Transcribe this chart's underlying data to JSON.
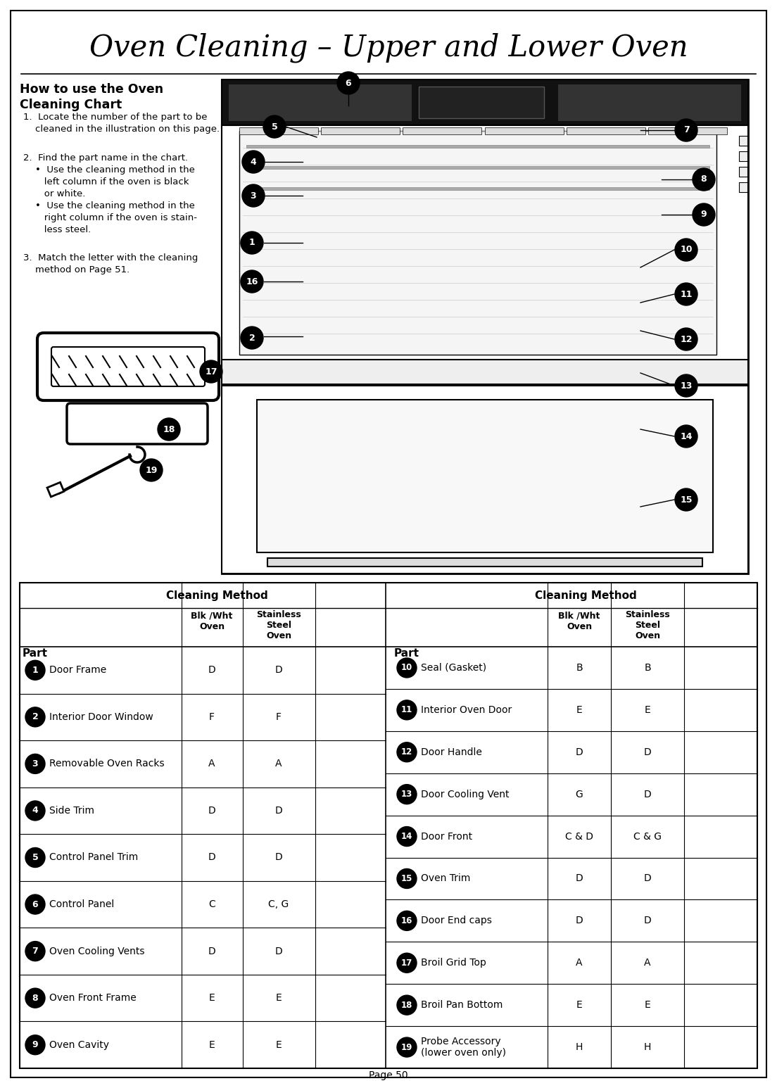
{
  "title": "Oven Cleaning – Upper and Lower Oven",
  "page_num": "Page 50",
  "bg_color": "#ffffff",
  "cleaning_method_label": "Cleaning Method",
  "left_parts": [
    {
      "num": "1",
      "name": "Door Frame",
      "blk": "D",
      "ss": "D"
    },
    {
      "num": "2",
      "name": "Interior Door Window",
      "blk": "F",
      "ss": "F"
    },
    {
      "num": "3",
      "name": "Removable Oven Racks",
      "blk": "A",
      "ss": "A"
    },
    {
      "num": "4",
      "name": "Side Trim",
      "blk": "D",
      "ss": "D"
    },
    {
      "num": "5",
      "name": "Control Panel Trim",
      "blk": "D",
      "ss": "D"
    },
    {
      "num": "6",
      "name": "Control Panel",
      "blk": "C",
      "ss": "C, G"
    },
    {
      "num": "7",
      "name": "Oven Cooling Vents",
      "blk": "D",
      "ss": "D"
    },
    {
      "num": "8",
      "name": "Oven Front Frame",
      "blk": "E",
      "ss": "E"
    },
    {
      "num": "9",
      "name": "Oven Cavity",
      "blk": "E",
      "ss": "E"
    }
  ],
  "right_parts": [
    {
      "num": "10",
      "name": "Seal (Gasket)",
      "blk": "B",
      "ss": "B"
    },
    {
      "num": "11",
      "name": "Interior Oven Door",
      "blk": "E",
      "ss": "E"
    },
    {
      "num": "12",
      "name": "Door Handle",
      "blk": "D",
      "ss": "D"
    },
    {
      "num": "13",
      "name": "Door Cooling Vent",
      "blk": "G",
      "ss": "D"
    },
    {
      "num": "14",
      "name": "Door Front",
      "blk": "C & D",
      "ss": "C & G"
    },
    {
      "num": "15",
      "name": "Oven Trim",
      "blk": "D",
      "ss": "D"
    },
    {
      "num": "16",
      "name": "Door End caps",
      "blk": "D",
      "ss": "D"
    },
    {
      "num": "17",
      "name": "Broil Grid Top",
      "blk": "A",
      "ss": "A"
    },
    {
      "num": "18",
      "name": "Broil Pan Bottom",
      "blk": "E",
      "ss": "E"
    },
    {
      "num": "19",
      "name": "Probe Accessory\n(lower oven only)",
      "blk": "H",
      "ss": "H"
    }
  ]
}
